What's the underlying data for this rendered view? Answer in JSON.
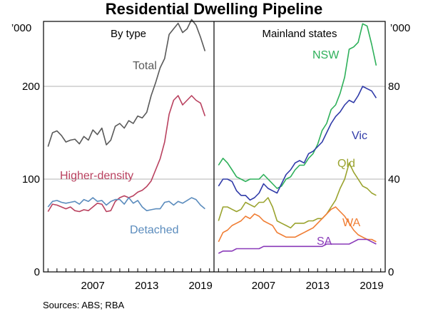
{
  "chart_data": {
    "type": "line",
    "title": "Residential Dwelling Pipeline",
    "source": "Sources:   ABS; RBA",
    "left_unit": "’000",
    "right_unit": "’000",
    "panels": [
      {
        "id": "by-type",
        "subtitle": "By type",
        "x_range": [
          2001.5,
          2020.5
        ],
        "x_ticks": [
          2007,
          2013,
          2019
        ],
        "x_tick_labels": [
          "2007",
          "2013",
          "2019"
        ],
        "y_range": [
          0,
          270
        ],
        "y_ticks": [
          0,
          100,
          200
        ],
        "y_tick_labels": [
          "0",
          "100",
          "200"
        ],
        "gridlines": [
          100,
          200
        ],
        "series": [
          {
            "name": "Total",
            "color": "#595959",
            "x": [
              2002.0,
              2002.5,
              2003.0,
              2003.5,
              2004.0,
              2004.5,
              2005.0,
              2005.5,
              2006.0,
              2006.5,
              2007.0,
              2007.5,
              2008.0,
              2008.5,
              2009.0,
              2009.5,
              2010.0,
              2010.5,
              2011.0,
              2011.5,
              2012.0,
              2012.5,
              2013.0,
              2013.5,
              2014.0,
              2014.5,
              2015.0,
              2015.5,
              2016.0,
              2016.5,
              2017.0,
              2017.5,
              2018.0,
              2018.5,
              2019.0,
              2019.5
            ],
            "values": [
              135,
              150,
              152,
              147,
              140,
              142,
              143,
              138,
              146,
              142,
              153,
              148,
              155,
              137,
              142,
              157,
              160,
              155,
              163,
              160,
              168,
              166,
              172,
              190,
              204,
              220,
              230,
              256,
              262,
              268,
              258,
              262,
              272,
              266,
              253,
              238
            ]
          },
          {
            "name": "Higher-density",
            "color": "#b9415f",
            "x": [
              2002.0,
              2002.5,
              2003.0,
              2003.5,
              2004.0,
              2004.5,
              2005.0,
              2005.5,
              2006.0,
              2006.5,
              2007.0,
              2007.5,
              2008.0,
              2008.5,
              2009.0,
              2009.5,
              2010.0,
              2010.5,
              2011.0,
              2011.5,
              2012.0,
              2012.5,
              2013.0,
              2013.5,
              2014.0,
              2014.5,
              2015.0,
              2015.5,
              2016.0,
              2016.5,
              2017.0,
              2017.5,
              2018.0,
              2018.5,
              2019.0,
              2019.5
            ],
            "values": [
              65,
              73,
              72,
              70,
              68,
              70,
              66,
              65,
              67,
              66,
              70,
              74,
              73,
              65,
              66,
              76,
              80,
              82,
              80,
              82,
              86,
              88,
              92,
              98,
              110,
              122,
              140,
              170,
              185,
              190,
              180,
              185,
              190,
              185,
              182,
              168
            ]
          },
          {
            "name": "Detached",
            "color": "#5b8cbd",
            "x": [
              2002.0,
              2002.5,
              2003.0,
              2003.5,
              2004.0,
              2004.5,
              2005.0,
              2005.5,
              2006.0,
              2006.5,
              2007.0,
              2007.5,
              2008.0,
              2008.5,
              2009.0,
              2009.5,
              2010.0,
              2010.5,
              2011.0,
              2011.5,
              2012.0,
              2012.5,
              2013.0,
              2013.5,
              2014.0,
              2014.5,
              2015.0,
              2015.5,
              2016.0,
              2016.5,
              2017.0,
              2017.5,
              2018.0,
              2018.5,
              2019.0,
              2019.5
            ],
            "values": [
              70,
              76,
              77,
              75,
              74,
              75,
              76,
              73,
              78,
              76,
              80,
              76,
              77,
              72,
              76,
              78,
              78,
              73,
              80,
              74,
              77,
              70,
              66,
              67,
              68,
              68,
              75,
              76,
              72,
              76,
              74,
              77,
              80,
              78,
              72,
              68
            ]
          }
        ]
      },
      {
        "id": "mainland-states",
        "subtitle": "Mainland states",
        "x_range": [
          2001.5,
          2020.5
        ],
        "x_ticks": [
          2007,
          2013,
          2019
        ],
        "x_tick_labels": [
          "2007",
          "2013",
          "2019"
        ],
        "y_range": [
          0,
          108
        ],
        "y_ticks": [
          0,
          40,
          80
        ],
        "y_tick_labels": [
          "0",
          "40",
          "80"
        ],
        "gridlines": [
          40,
          80
        ],
        "series": [
          {
            "name": "NSW",
            "color": "#2eb05a",
            "x": [
              2002.0,
              2002.5,
              2003.0,
              2003.5,
              2004.0,
              2004.5,
              2005.0,
              2005.5,
              2006.0,
              2006.5,
              2007.0,
              2007.5,
              2008.0,
              2008.5,
              2009.0,
              2009.5,
              2010.0,
              2010.5,
              2011.0,
              2011.5,
              2012.0,
              2012.5,
              2013.0,
              2013.5,
              2014.0,
              2014.5,
              2015.0,
              2015.5,
              2016.0,
              2016.5,
              2017.0,
              2017.5,
              2018.0,
              2018.5,
              2019.0,
              2019.5
            ],
            "values": [
              46,
              49,
              47,
              44,
              41,
              40,
              39,
              40,
              40,
              40,
              42,
              40,
              38,
              36,
              37,
              40,
              41,
              44,
              46,
              46,
              49,
              51,
              55,
              61,
              64,
              70,
              72,
              77,
              84,
              96,
              97,
              99,
              107,
              106,
              98,
              89
            ]
          },
          {
            "name": "Vic",
            "color": "#2f3aa8",
            "x": [
              2002.0,
              2002.5,
              2003.0,
              2003.5,
              2004.0,
              2004.5,
              2005.0,
              2005.5,
              2006.0,
              2006.5,
              2007.0,
              2007.5,
              2008.0,
              2008.5,
              2009.0,
              2009.5,
              2010.0,
              2010.5,
              2011.0,
              2011.5,
              2012.0,
              2012.5,
              2013.0,
              2013.5,
              2014.0,
              2014.5,
              2015.0,
              2015.5,
              2016.0,
              2016.5,
              2017.0,
              2017.5,
              2018.0,
              2018.5,
              2019.0,
              2019.5
            ],
            "values": [
              37,
              40,
              40,
              39,
              35,
              33,
              33,
              31,
              32,
              34,
              38,
              36,
              35,
              34,
              38,
              42,
              44,
              47,
              48,
              47,
              51,
              52,
              54,
              56,
              60,
              64,
              67,
              69,
              72,
              74,
              73,
              76,
              80,
              79,
              78,
              75
            ]
          },
          {
            "name": "Qld",
            "color": "#9aa32e",
            "x": [
              2002.0,
              2002.5,
              2003.0,
              2003.5,
              2004.0,
              2004.5,
              2005.0,
              2005.5,
              2006.0,
              2006.5,
              2007.0,
              2007.5,
              2008.0,
              2008.5,
              2009.0,
              2009.5,
              2010.0,
              2010.5,
              2011.0,
              2011.5,
              2012.0,
              2012.5,
              2013.0,
              2013.5,
              2014.0,
              2014.5,
              2015.0,
              2015.5,
              2016.0,
              2016.5,
              2017.0,
              2017.5,
              2018.0,
              2018.5,
              2019.0,
              2019.5
            ],
            "values": [
              22,
              28,
              28,
              27,
              26,
              27,
              30,
              29,
              28,
              30,
              30,
              32,
              28,
              22,
              21,
              20,
              19,
              21,
              21,
              21,
              22,
              22,
              23,
              23,
              25,
              28,
              31,
              36,
              40,
              47,
              43,
              40,
              37,
              36,
              34,
              33
            ]
          },
          {
            "name": "WA",
            "color": "#f07d33",
            "x": [
              2002.0,
              2002.5,
              2003.0,
              2003.5,
              2004.0,
              2004.5,
              2005.0,
              2005.5,
              2006.0,
              2006.5,
              2007.0,
              2007.5,
              2008.0,
              2008.5,
              2009.0,
              2009.5,
              2010.0,
              2010.5,
              2011.0,
              2011.5,
              2012.0,
              2012.5,
              2013.0,
              2013.5,
              2014.0,
              2014.5,
              2015.0,
              2015.5,
              2016.0,
              2016.5,
              2017.0,
              2017.5,
              2018.0,
              2018.5,
              2019.0,
              2019.5
            ],
            "values": [
              13,
              17,
              18,
              20,
              21,
              22,
              24,
              23,
              25,
              24,
              22,
              21,
              20,
              17,
              16,
              15,
              15,
              15,
              16,
              17,
              18,
              19,
              21,
              23,
              25,
              27,
              28,
              26,
              24,
              21,
              18,
              16,
              15,
              14,
              14,
              13
            ]
          },
          {
            "name": "SA",
            "color": "#8a3ab9",
            "x": [
              2002.0,
              2002.5,
              2003.0,
              2003.5,
              2004.0,
              2004.5,
              2005.0,
              2005.5,
              2006.0,
              2006.5,
              2007.0,
              2007.5,
              2008.0,
              2008.5,
              2009.0,
              2009.5,
              2010.0,
              2010.5,
              2011.0,
              2011.5,
              2012.0,
              2012.5,
              2013.0,
              2013.5,
              2014.0,
              2014.5,
              2015.0,
              2015.5,
              2016.0,
              2016.5,
              2017.0,
              2017.5,
              2018.0,
              2018.5,
              2019.0,
              2019.5
            ],
            "values": [
              8,
              9,
              9,
              9,
              10,
              10,
              10,
              10,
              10,
              10,
              11,
              11,
              11,
              11,
              11,
              11,
              11,
              11,
              11,
              11,
              11,
              11,
              11,
              11,
              12,
              12,
              12,
              12,
              12,
              12,
              13,
              14,
              14,
              14,
              13,
              12
            ]
          }
        ]
      }
    ]
  }
}
